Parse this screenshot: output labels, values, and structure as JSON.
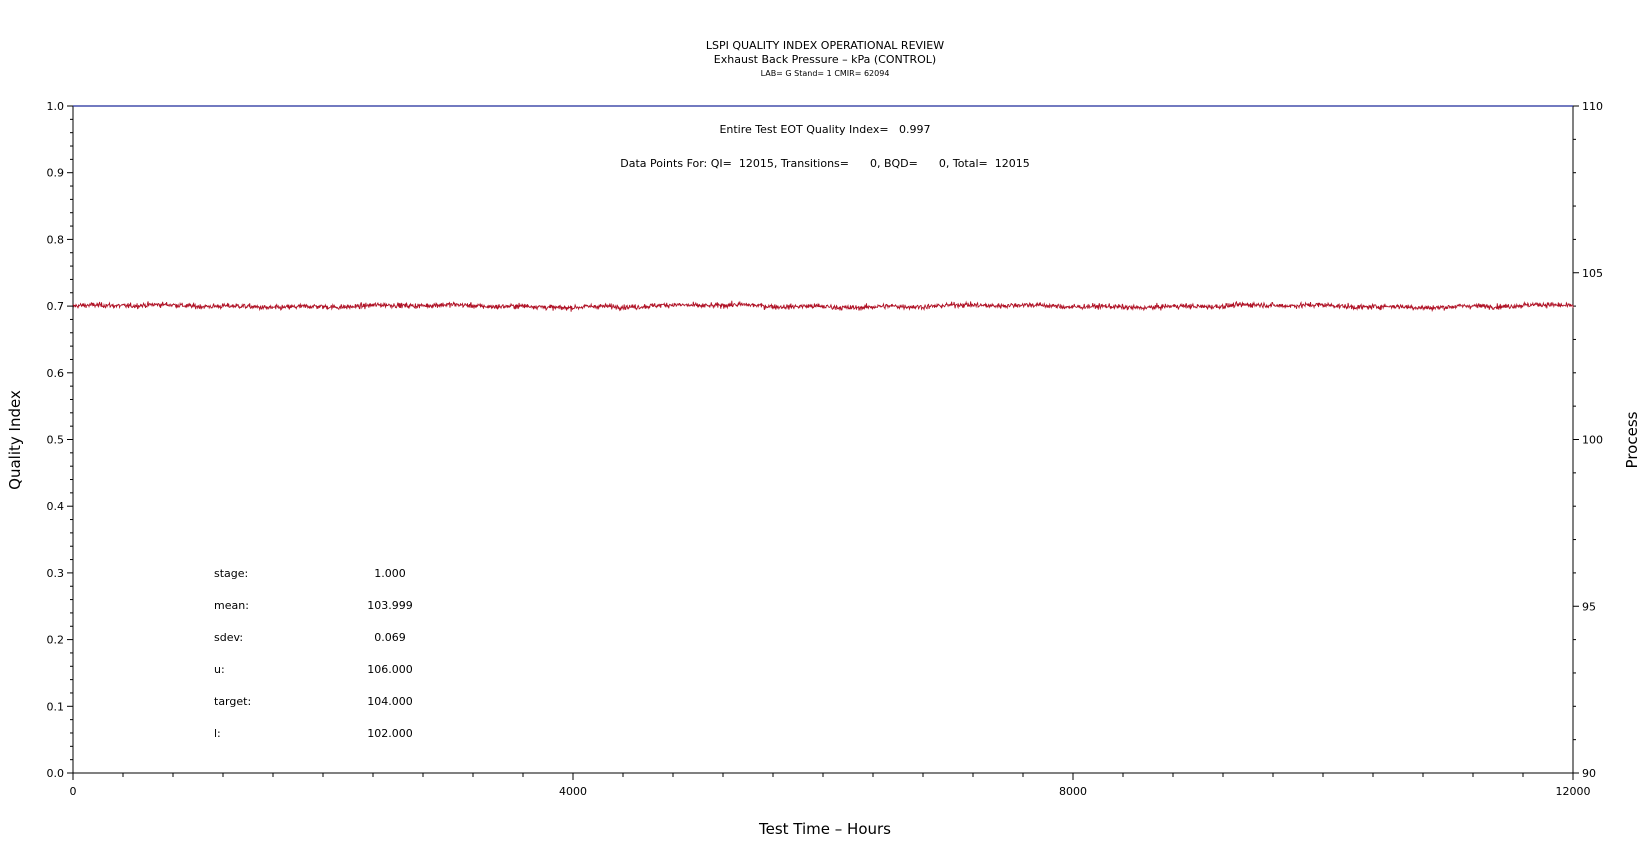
{
  "chart_data": {
    "type": "line",
    "title": "LSPI QUALITY INDEX OPERATIONAL REVIEW",
    "subtitle": "Exhaust Back Pressure – kPa (CONTROL)",
    "subtitle2": "LAB= G Stand= 1 CMIR= 62094",
    "annotation_qi": "Entire Test EOT Quality Index=   0.997",
    "annotation_points": "Data Points For: QI=  12015, Transitions=      0, BQD=      0, Total=  12015",
    "xlabel": "Test Time – Hours",
    "ylabel_left": "Quality Index",
    "ylabel_right": "Process",
    "xlim": [
      0,
      12000
    ],
    "ylim_left": [
      0,
      1
    ],
    "ylim_right": [
      90,
      110
    ],
    "x_ticks": [
      "0",
      "4000",
      "8000",
      "12000"
    ],
    "y_left_ticks": [
      "0.0",
      "0.1",
      "0.2",
      "0.3",
      "0.4",
      "0.5",
      "0.6",
      "0.7",
      "0.8",
      "0.9",
      "1.0"
    ],
    "y_right_ticks": [
      "90",
      "95",
      "100",
      "105",
      "110"
    ],
    "series": [
      {
        "axis": "left",
        "color": "#1f2a9a",
        "x": [
          0,
          12000
        ],
        "y": [
          1.0,
          1.0
        ]
      },
      {
        "axis": "right",
        "color": "#b01226",
        "mean": 103.999,
        "sdev": 0.069,
        "x_range": [
          0,
          12015
        ]
      }
    ],
    "stats": [
      {
        "label": "stage:",
        "value": "1.000"
      },
      {
        "label": "mean:",
        "value": "103.999"
      },
      {
        "label": "sdev:",
        "value": "0.069"
      },
      {
        "label": "u:",
        "value": "106.000"
      },
      {
        "label": "target:",
        "value": "104.000"
      },
      {
        "label": "l:",
        "value": "102.000"
      }
    ]
  }
}
